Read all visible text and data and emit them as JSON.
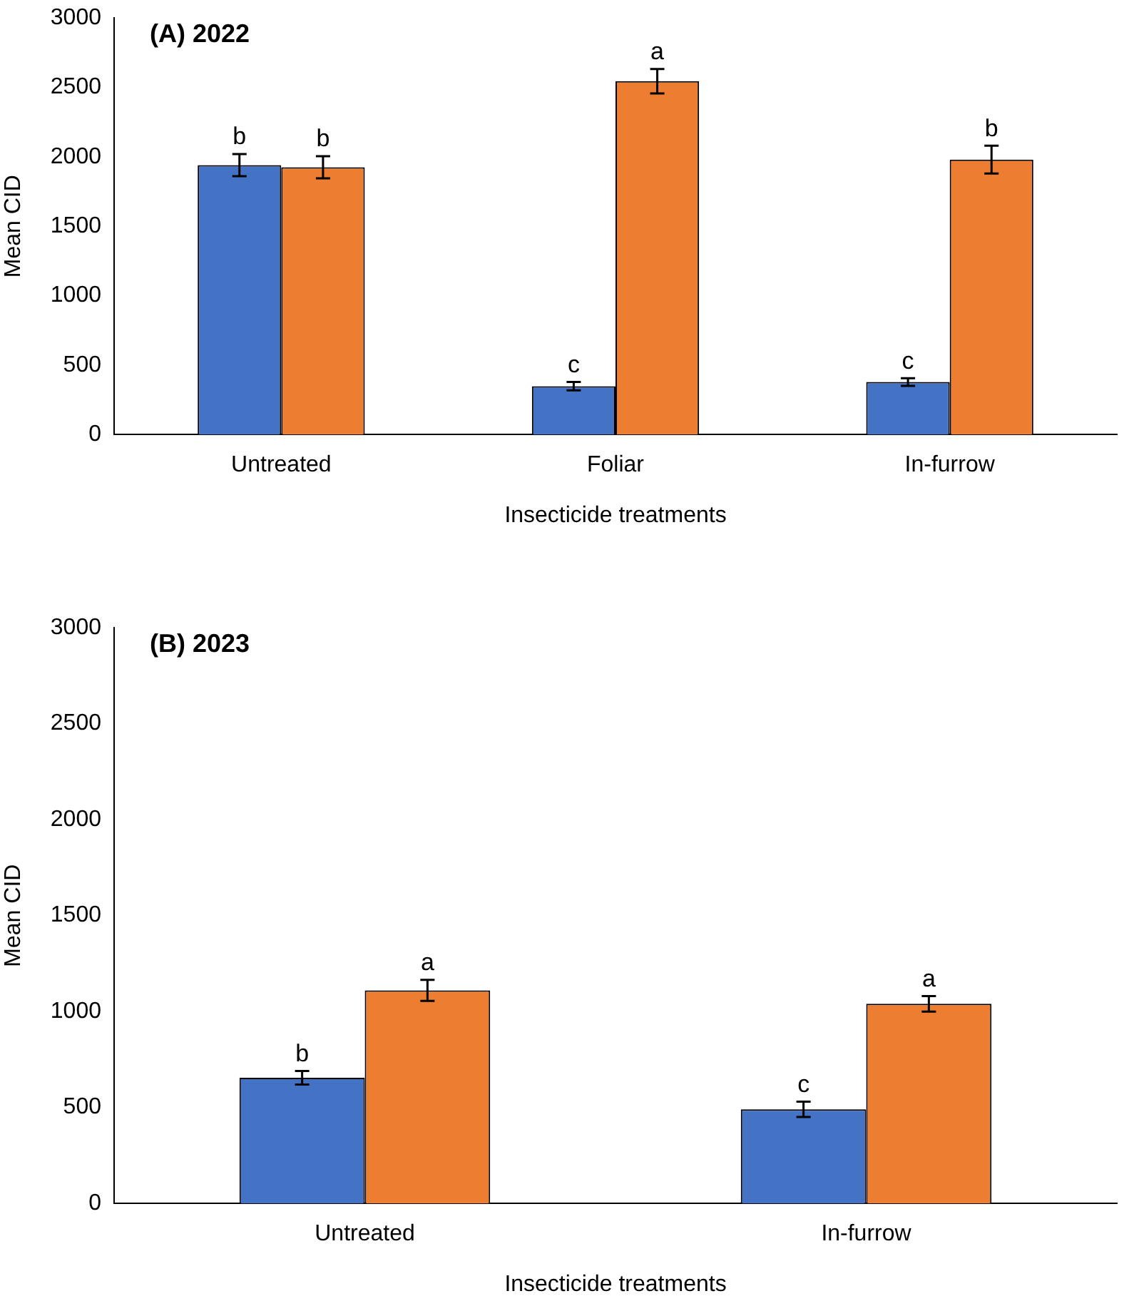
{
  "chart_data": [
    {
      "type": "bar",
      "title": "(A) 2022",
      "xlabel": "Insecticide treatments",
      "ylabel": "Mean CID",
      "categories": [
        "Untreated",
        "Foliar",
        "In-furrow"
      ],
      "series": [
        {
          "color": "#4472c4",
          "values": [
            1940,
            348,
            378
          ],
          "errors": [
            80,
            30,
            28
          ],
          "value_labels": [
            "b",
            "c",
            "c"
          ]
        },
        {
          "color": "#ed7d31",
          "values": [
            1925,
            2545,
            1980
          ],
          "errors": [
            80,
            88,
            100
          ],
          "value_labels": [
            "b",
            "a",
            "b"
          ]
        }
      ],
      "ylim": [
        0,
        3000
      ],
      "yticks": [
        0,
        500,
        1000,
        1500,
        2000,
        2500,
        3000
      ],
      "grid": false,
      "legend": false
    },
    {
      "type": "bar",
      "title": "(B) 2023",
      "xlabel": "Insecticide treatments",
      "ylabel": "Mean CID",
      "categories": [
        "Untreated",
        "In-furrow"
      ],
      "series": [
        {
          "color": "#4472c4",
          "values": [
            655,
            490
          ],
          "errors": [
            35,
            40
          ],
          "value_labels": [
            "b",
            "c"
          ]
        },
        {
          "color": "#ed7d31",
          "values": [
            1110,
            1040
          ],
          "errors": [
            55,
            40
          ],
          "value_labels": [
            "a",
            "a"
          ]
        }
      ],
      "ylim": [
        0,
        3000
      ],
      "yticks": [
        0,
        500,
        1000,
        1500,
        2000,
        2500,
        3000
      ],
      "grid": false,
      "legend": false
    }
  ]
}
